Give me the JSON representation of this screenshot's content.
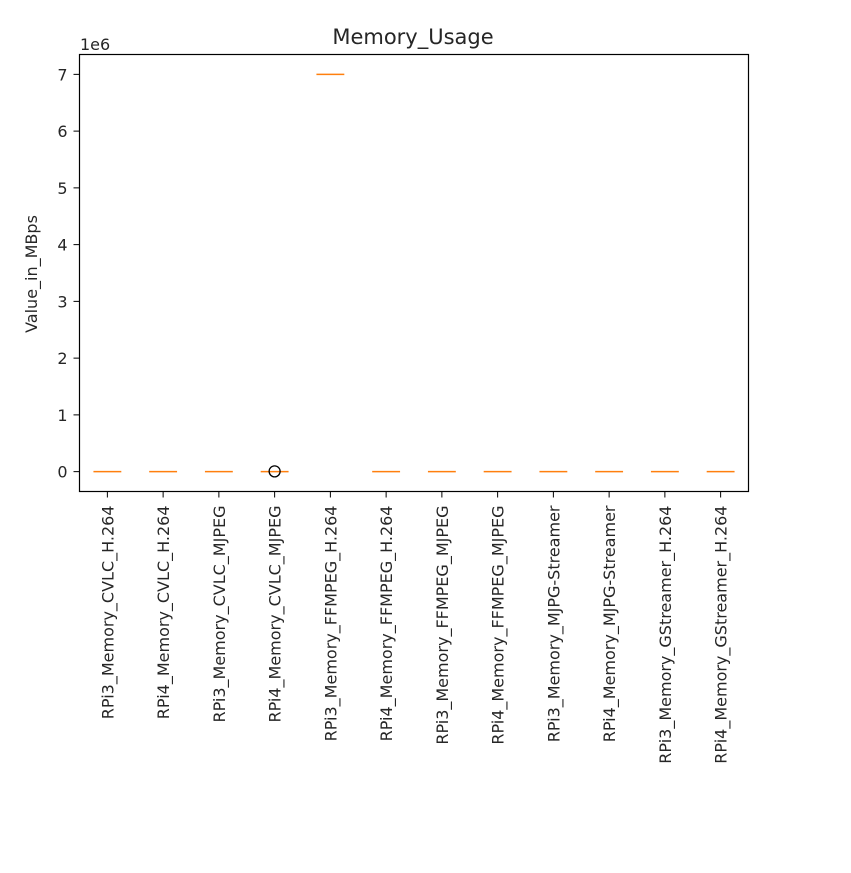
{
  "chart_data": {
    "type": "box",
    "title": "Memory_Usage",
    "xlabel": "",
    "ylabel": "Value_in_MBps",
    "y_offset_text": "1e6",
    "ylim": [
      -0.35,
      7.35
    ],
    "yticks": [
      0,
      1,
      2,
      3,
      4,
      5,
      6,
      7
    ],
    "ytick_labels": [
      "0",
      "1",
      "2",
      "3",
      "4",
      "5",
      "6",
      "7"
    ],
    "y_scale_multiplier": 1000000,
    "categories": [
      "RPi3_Memory_CVLC_H.264",
      "RPi4_Memory_CVLC_H.264",
      "RPi3_Memory_CVLC_MJPEG",
      "RPi4_Memory_CVLC_MJPEG",
      "RPi3_Memory_FFMPEG_H.264",
      "RPi4_Memory_FFMPEG_H.264",
      "RPi3_Memory_FFMPEG_MJPEG",
      "RPi4_Memory_FFMPEG_MJPEG",
      "RPi3_Memory_MJPG-Streamer",
      "RPi4_Memory_MJPG-Streamer",
      "RPi3_Memory_GStreamer_H.264",
      "RPi4_Memory_GStreamer_H.264"
    ],
    "medians": [
      0,
      0,
      0,
      0,
      7.0,
      0,
      0,
      0,
      0,
      0,
      0,
      0
    ],
    "outliers": [
      [],
      [],
      [],
      [
        0.005
      ],
      [],
      [],
      [],
      [],
      [],
      [],
      [],
      []
    ],
    "grid": false,
    "legend": "none",
    "colors": {
      "median": "#ff7f0e",
      "outlier": "#000000",
      "axis": "#000000",
      "text": "#262626"
    }
  }
}
